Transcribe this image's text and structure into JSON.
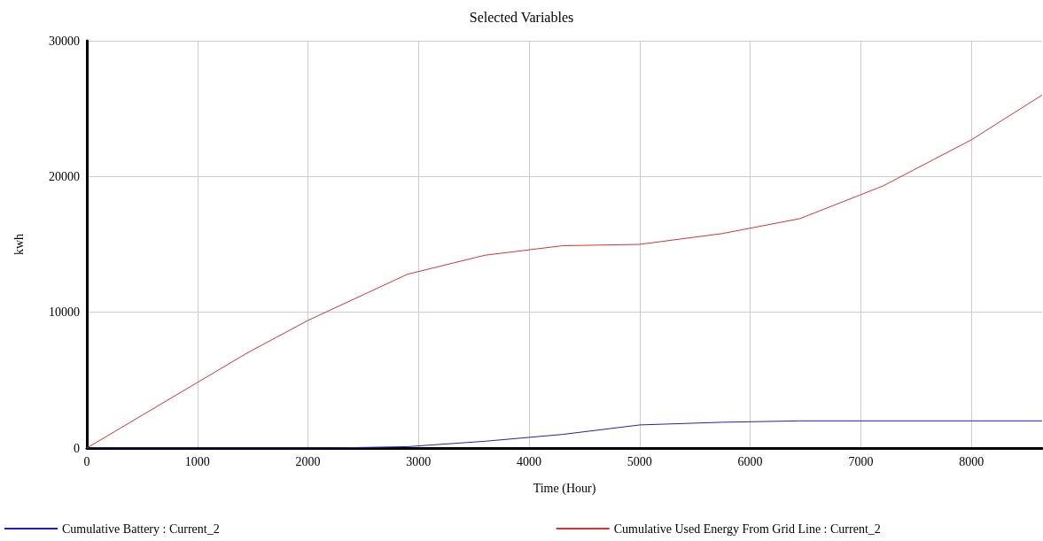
{
  "chart_data": {
    "type": "line",
    "title": "Selected Variables",
    "xlabel": "Time (Hour)",
    "ylabel": "kwh",
    "xlim": [
      0,
      8640
    ],
    "xticks": [
      0,
      1000,
      2000,
      3000,
      4000,
      5000,
      6000,
      7000,
      8000
    ],
    "ylim": [
      0,
      30000
    ],
    "yticks": [
      0,
      10000,
      20000,
      30000
    ],
    "grid": true,
    "legend": "bottom",
    "marker": "none",
    "line_style": "solid",
    "series": [
      {
        "name": "Cumulative Battery : Current_2",
        "color": "#2020c0",
        "x": [
          0,
          2200,
          2900,
          3600,
          4300,
          5000,
          5750,
          6450,
          8640
        ],
        "values": [
          0,
          0,
          100,
          500,
          1000,
          1700,
          1900,
          2000,
          2000
        ]
      },
      {
        "name": "Cumulative Used Energy From Grid Line : Current_2",
        "color": "#e03030",
        "x": [
          0,
          1450,
          2000,
          2900,
          3600,
          4300,
          5000,
          5750,
          6450,
          7200,
          8000,
          8640
        ],
        "values": [
          0,
          7000,
          9400,
          12800,
          14200,
          14900,
          15000,
          15800,
          16900,
          19300,
          22700,
          26000
        ]
      }
    ]
  }
}
